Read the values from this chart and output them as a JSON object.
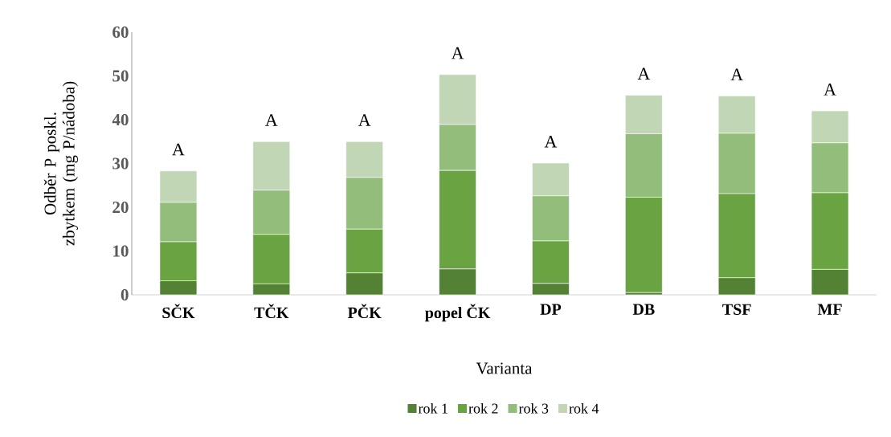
{
  "chart_data": {
    "type": "bar",
    "stacked": true,
    "xlabel": "Varianta",
    "ylabel": "Odběr P poskl. zbytkem (mg P/nádoba)",
    "categories": [
      "SČK",
      "TČK",
      "PČK",
      "popel ČK",
      "DP",
      "DB",
      "TSF",
      "MF"
    ],
    "series": [
      {
        "name": "rok 1",
        "color": "#548235",
        "values": [
          3.2,
          2.5,
          5.0,
          5.9,
          2.6,
          0.5,
          3.9,
          5.8
        ]
      },
      {
        "name": "rok 2",
        "color": "#6aa342",
        "values": [
          8.9,
          11.3,
          10.0,
          22.5,
          9.7,
          21.8,
          19.2,
          17.5
        ]
      },
      {
        "name": "rok 3",
        "color": "#93bd7b",
        "values": [
          9.0,
          10.1,
          11.8,
          10.5,
          10.3,
          14.5,
          13.8,
          11.4
        ]
      },
      {
        "name": "rok 4",
        "color": "#c0d6b5",
        "values": [
          7.2,
          11.1,
          8.2,
          11.4,
          7.5,
          8.8,
          8.5,
          7.3
        ]
      }
    ],
    "ylim": [
      0,
      60
    ],
    "yticks": [
      0,
      10,
      20,
      30,
      40,
      50,
      60
    ],
    "grid": false,
    "legend": "bottom",
    "annotations": [
      "A",
      "A",
      "A",
      "A",
      "A",
      "A",
      "A",
      "A"
    ]
  }
}
